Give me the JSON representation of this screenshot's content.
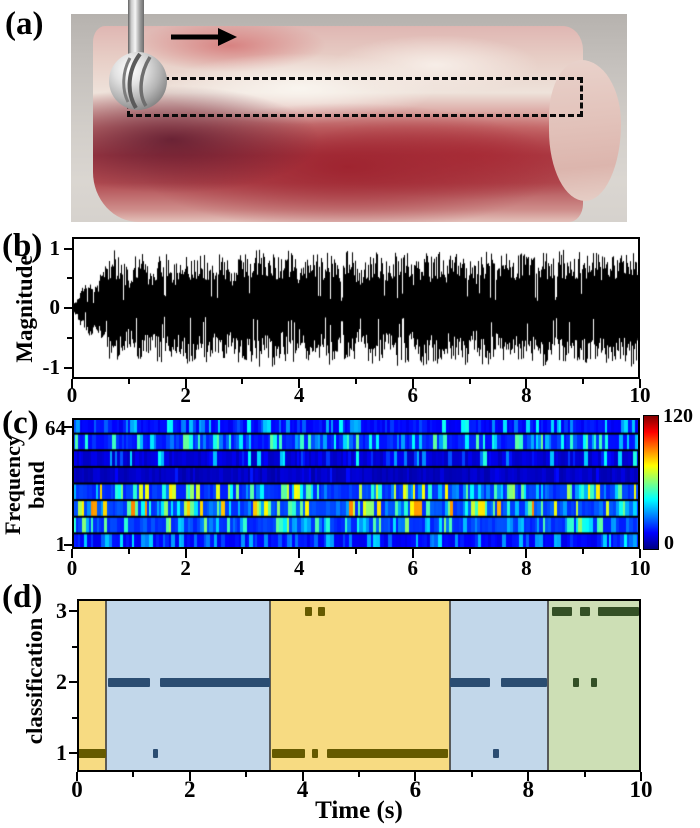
{
  "panels": {
    "a": {
      "label": "(a)"
    },
    "b": {
      "label": "(b)"
    },
    "c": {
      "label": "(c)"
    },
    "d": {
      "label": "(d)"
    }
  },
  "panel_a": {
    "content": "photograph of bone/tissue specimen on paper towel",
    "tool": "spherical-burr-drill",
    "arrow": "feed-direction-arrow",
    "roi": "dashed-analysis-region"
  },
  "chart_data": [
    {
      "id": "acoustic_waveform",
      "type": "line",
      "ylabel": "Magnitude",
      "xlim": [
        0,
        10
      ],
      "ylim": [
        -1,
        1
      ],
      "xticks": [
        0,
        2,
        4,
        6,
        8,
        10
      ],
      "xminorticks": [
        1,
        3,
        5,
        7,
        9
      ],
      "yticks": [
        1,
        0,
        -1
      ],
      "yminorticks": [
        0.5,
        -0.5
      ],
      "envelope_dt": 0.1,
      "envelope": [
        0.05,
        0.2,
        0.42,
        0.5,
        0.4,
        0.58,
        0.85,
        1.0,
        0.95,
        0.78,
        0.62,
        0.88,
        1.0,
        0.84,
        0.68,
        0.95,
        1.0,
        0.9,
        0.74,
        0.95,
        1.0,
        0.94,
        0.84,
        1.0,
        0.9,
        0.8,
        1.0,
        0.95,
        0.7,
        0.9,
        1.0,
        0.85,
        0.95,
        1.0,
        0.88,
        1.0,
        0.94,
        0.8,
        1.0,
        0.9,
        0.62,
        0.85,
        1.0,
        0.95,
        0.85,
        1.0,
        0.9,
        0.7,
        0.95,
        1.0,
        0.8,
        0.62,
        0.9,
        1.0,
        0.95,
        0.85,
        0.74,
        1.0,
        0.9,
        0.95,
        0.7,
        0.9,
        1.0,
        0.85,
        0.95,
        1.0,
        0.8,
        0.95,
        0.9,
        1.0,
        0.85,
        0.7,
        0.95,
        1.0,
        0.9,
        0.8,
        1.0,
        0.95,
        0.85,
        1.0,
        0.9,
        0.95,
        0.74,
        1.0,
        0.9,
        0.85,
        1.0,
        0.95,
        0.8,
        0.95,
        1.0,
        0.85,
        0.95,
        0.9,
        1.0,
        0.95,
        0.85,
        0.92,
        1.0,
        0.96
      ],
      "seed": 11
    },
    {
      "id": "wavelet_spectrogram",
      "type": "heatmap",
      "ylabel_lines": [
        "Frequency",
        "band"
      ],
      "ytick_top": "64",
      "ytick_bottom": "1",
      "xticks": [
        0,
        2,
        4,
        6,
        8,
        10
      ],
      "xminorticks": [
        1,
        3,
        5,
        7,
        9
      ],
      "colormap": "jet",
      "colorbar": {
        "min": 0,
        "max": 120,
        "max_label": "120",
        "min_label": "0"
      },
      "bands_bottom_to_top": [
        {
          "band": 1,
          "base": 12,
          "peak": 45,
          "density": 0.5
        },
        {
          "band": 2,
          "base": 18,
          "peak": 65,
          "density": 0.65
        },
        {
          "band": 3,
          "base": 20,
          "peak": 90,
          "density": 0.68
        },
        {
          "band": 4,
          "base": 18,
          "peak": 80,
          "density": 0.66
        },
        {
          "band": 5,
          "base": 5,
          "peak": 20,
          "density": 0.06
        },
        {
          "band": 6,
          "base": 8,
          "peak": 50,
          "density": 0.32,
          "density_ramp": true
        },
        {
          "band": 7,
          "base": 16,
          "peak": 58,
          "density": 0.62
        },
        {
          "band": 8,
          "base": 13,
          "peak": 48,
          "density": 0.5
        }
      ],
      "seed": 23
    },
    {
      "id": "classification_result",
      "type": "scatter",
      "xlabel": "Time (s)",
      "ylabel": "classification",
      "xlim": [
        0,
        10
      ],
      "ylim": [
        0.75,
        3.25
      ],
      "xticks": [
        0,
        2,
        4,
        6,
        8,
        10
      ],
      "xminorticks": [
        1,
        3,
        5,
        7,
        9
      ],
      "yticks": [
        3,
        2,
        1
      ],
      "yminorticks": [
        1.5,
        2.5
      ],
      "region_colors": {
        "tissue1": "#f7db82",
        "tissue2": "#c2d7ea",
        "tissue3": "#cddfb5"
      },
      "marker_colors": {
        "tissue1": "#665a00",
        "tissue2": "#2b4d72",
        "tissue3": "#345026"
      },
      "boundary_color": "#444444",
      "regions": [
        {
          "from": 0,
          "to": 0.52,
          "class": "tissue1"
        },
        {
          "from": 0.52,
          "to": 3.43,
          "class": "tissue2"
        },
        {
          "from": 3.43,
          "to": 6.61,
          "class": "tissue1"
        },
        {
          "from": 6.61,
          "to": 8.35,
          "class": "tissue2"
        },
        {
          "from": 8.35,
          "to": 10,
          "class": "tissue3"
        }
      ],
      "segments": [
        {
          "from": 0.0,
          "to": 0.52,
          "y": 1,
          "class": "tissue1"
        },
        {
          "from": 0.55,
          "to": 1.3,
          "y": 2,
          "class": "tissue2"
        },
        {
          "from": 1.34,
          "to": 1.44,
          "y": 1,
          "class": "tissue2"
        },
        {
          "from": 1.48,
          "to": 3.43,
          "y": 2,
          "class": "tissue2"
        },
        {
          "from": 3.46,
          "to": 4.04,
          "y": 1,
          "class": "tissue1"
        },
        {
          "from": 4.05,
          "to": 4.16,
          "y": 3,
          "class": "tissue1"
        },
        {
          "from": 4.17,
          "to": 4.27,
          "y": 1,
          "class": "tissue1"
        },
        {
          "from": 4.28,
          "to": 4.4,
          "y": 3,
          "class": "tissue1"
        },
        {
          "from": 4.43,
          "to": 6.58,
          "y": 1,
          "class": "tissue1"
        },
        {
          "from": 6.62,
          "to": 7.33,
          "y": 2,
          "class": "tissue2"
        },
        {
          "from": 7.38,
          "to": 7.48,
          "y": 1,
          "class": "tissue2"
        },
        {
          "from": 7.52,
          "to": 8.33,
          "y": 2,
          "class": "tissue2"
        },
        {
          "from": 8.42,
          "to": 8.78,
          "y": 3,
          "class": "tissue3"
        },
        {
          "from": 8.8,
          "to": 8.9,
          "y": 2,
          "class": "tissue3"
        },
        {
          "from": 8.92,
          "to": 9.1,
          "y": 3,
          "class": "tissue3"
        },
        {
          "from": 9.12,
          "to": 9.22,
          "y": 2,
          "class": "tissue3"
        },
        {
          "from": 9.24,
          "to": 9.97,
          "y": 3,
          "class": "tissue3"
        }
      ]
    }
  ]
}
